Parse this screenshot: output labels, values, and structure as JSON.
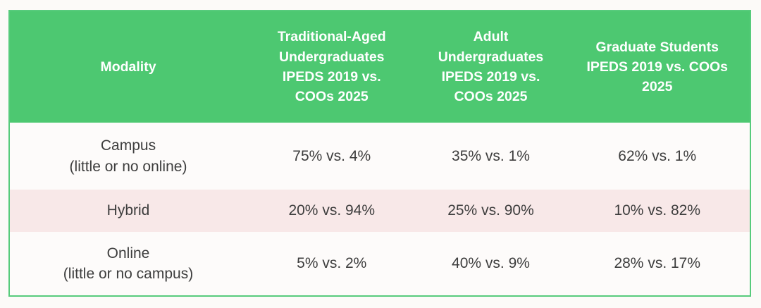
{
  "colors": {
    "page_bg": "#fcfaf8",
    "header_bg": "#4dc871",
    "header_text": "#ffffff",
    "table_border": "#57cb7c",
    "row_bg": "#fdfbfa",
    "row_alt_bg": "#f8e8e8",
    "body_text": "#3d3d3d"
  },
  "table": {
    "columns": [
      {
        "label": "Modality"
      },
      {
        "label": "Traditional-Aged\nUndergraduates\nIPEDS 2019 vs.\nCOOs 2025"
      },
      {
        "label": "Adult\nUndergraduates\nIPEDS 2019 vs.\nCOOs 2025"
      },
      {
        "label": "Graduate Students\nIPEDS 2019 vs. COOs\n2025"
      }
    ],
    "rows": [
      {
        "modality": "Campus\n(little or no online)",
        "values": [
          "75% vs. 4%",
          "35% vs. 1%",
          "62% vs. 1%"
        ]
      },
      {
        "modality": "Hybrid",
        "values": [
          "20% vs. 94%",
          "25% vs. 90%",
          "10% vs. 82%"
        ]
      },
      {
        "modality": "Online\n(little or no campus)",
        "values": [
          "5% vs. 2%",
          "40% vs. 9%",
          "28% vs. 17%"
        ]
      }
    ]
  },
  "chart_data": {
    "type": "table",
    "title": "",
    "columns": [
      "Modality",
      "Traditional-Aged Undergraduates IPEDS 2019 vs. COOs 2025",
      "Adult Undergraduates IPEDS 2019 vs. COOs 2025",
      "Graduate Students IPEDS 2019 vs. COOs 2025"
    ],
    "rows": [
      [
        "Campus (little or no online)",
        "75% vs. 4%",
        "35% vs. 1%",
        "62% vs. 1%"
      ],
      [
        "Hybrid",
        "20% vs. 94%",
        "25% vs. 90%",
        "10% vs. 82%"
      ],
      [
        "Online (little or no campus)",
        "5% vs. 2%",
        "40% vs. 9%",
        "28% vs. 17%"
      ]
    ]
  }
}
